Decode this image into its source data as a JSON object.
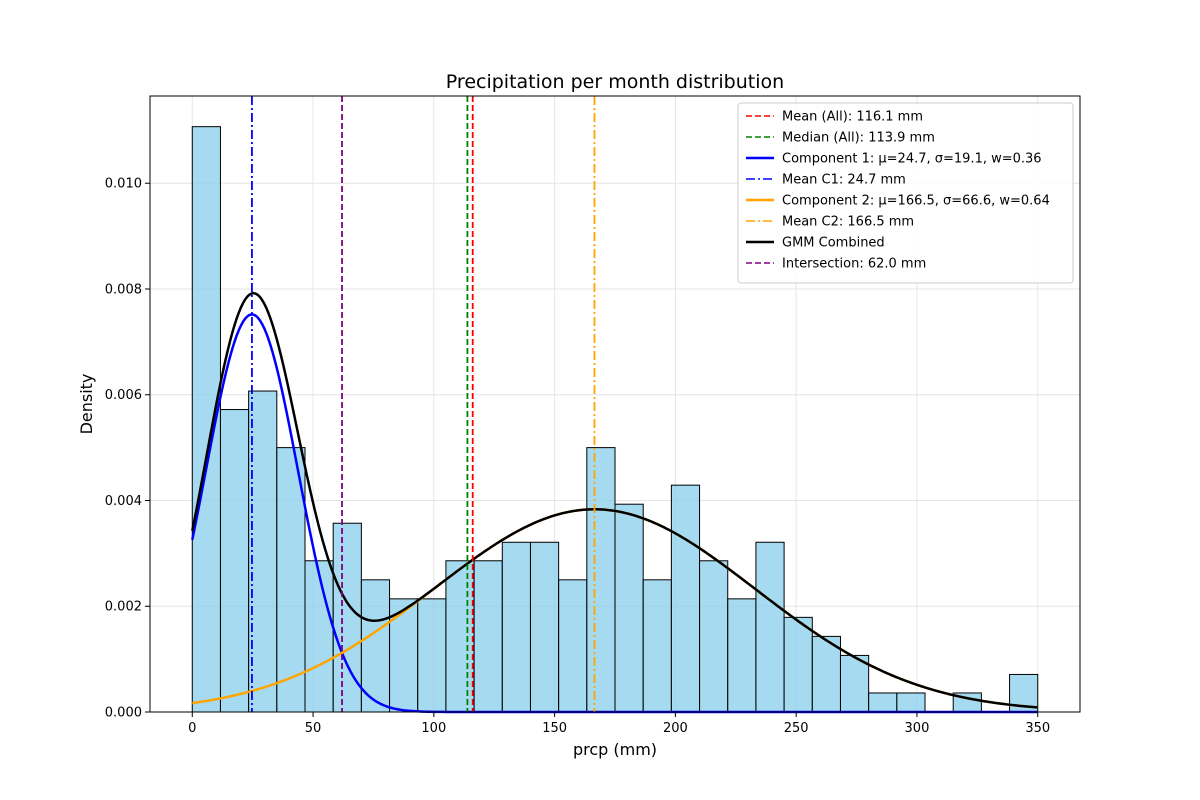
{
  "chart_data": {
    "type": "bar",
    "title": "Precipitation per month distribution",
    "xlabel": "prcp (mm)",
    "ylabel": "Density",
    "xlim": [
      -17.5,
      367.5
    ],
    "ylim": [
      0,
      0.01165
    ],
    "x_ticks": [
      "0",
      "50",
      "100",
      "150",
      "200",
      "250",
      "300",
      "350"
    ],
    "x_tick_values": [
      0,
      50,
      100,
      150,
      200,
      250,
      300,
      350
    ],
    "y_ticks": [
      "0.000",
      "0.002",
      "0.004",
      "0.006",
      "0.008",
      "0.010"
    ],
    "y_tick_values": [
      0,
      0.002,
      0.004,
      0.006,
      0.008,
      0.01
    ],
    "grid": true,
    "legend_position": "upper right",
    "histogram": {
      "bin_width": 11.667,
      "bin_start": 0,
      "color": "#87ceeb",
      "densities": [
        0.01107,
        0.00572,
        0.00607,
        0.005,
        0.00286,
        0.00357,
        0.0025,
        0.00214,
        0.00214,
        0.00286,
        0.00286,
        0.00321,
        0.00321,
        0.0025,
        0.005,
        0.00393,
        0.0025,
        0.00429,
        0.00286,
        0.00214,
        0.00321,
        0.00179,
        0.00143,
        0.00107,
        0.00036,
        0.00036,
        0.0,
        0.00036,
        0.0,
        0.00071
      ]
    },
    "components": [
      {
        "name": "Component 1: μ=24.7, σ=19.1, w=0.36",
        "mu": 24.7,
        "sigma": 19.1,
        "weight": 0.36,
        "color": "#0000ff"
      },
      {
        "name": "Component 2: μ=166.5, σ=66.6, w=0.64",
        "mu": 166.5,
        "sigma": 66.6,
        "weight": 0.64,
        "color": "#ffa500"
      }
    ],
    "combined": {
      "name": "GMM Combined",
      "color": "#000000"
    },
    "curve_x_range": [
      0,
      350
    ],
    "vlines": [
      {
        "name": "Mean (All): 116.1 mm",
        "x": 116.1,
        "color": "#ff0000",
        "style": "dashed"
      },
      {
        "name": "Median (All): 113.9 mm",
        "x": 113.9,
        "color": "#008000",
        "style": "dashed"
      },
      {
        "name": "Mean C1: 24.7 mm",
        "x": 24.7,
        "color": "#0000ff",
        "style": "dashdot"
      },
      {
        "name": "Mean C2: 166.5 mm",
        "x": 166.5,
        "color": "#ffa500",
        "style": "dashdot"
      },
      {
        "name": "Intersection: 62.0 mm",
        "x": 62.0,
        "color": "#800080",
        "style": "dashed"
      }
    ],
    "legend": [
      {
        "label": "Mean (All): 116.1 mm",
        "color": "#ff0000",
        "style": "dashed",
        "width": 1.5
      },
      {
        "label": "Median (All): 113.9 mm",
        "color": "#008000",
        "style": "dashed",
        "width": 1.5
      },
      {
        "label": "Component 1: μ=24.7, σ=19.1, w=0.36",
        "color": "#0000ff",
        "style": "solid",
        "width": 2.5
      },
      {
        "label": "Mean C1: 24.7 mm",
        "color": "#0000ff",
        "style": "dashdot",
        "width": 1.5
      },
      {
        "label": "Component 2: μ=166.5, σ=66.6, w=0.64",
        "color": "#ffa500",
        "style": "solid",
        "width": 2.5
      },
      {
        "label": "Mean C2: 166.5 mm",
        "color": "#ffa500",
        "style": "dashdot",
        "width": 1.5
      },
      {
        "label": "GMM Combined",
        "color": "#000000",
        "style": "solid",
        "width": 2.5
      },
      {
        "label": "Intersection: 62.0 mm",
        "color": "#800080",
        "style": "dashed",
        "width": 1.5
      }
    ]
  }
}
